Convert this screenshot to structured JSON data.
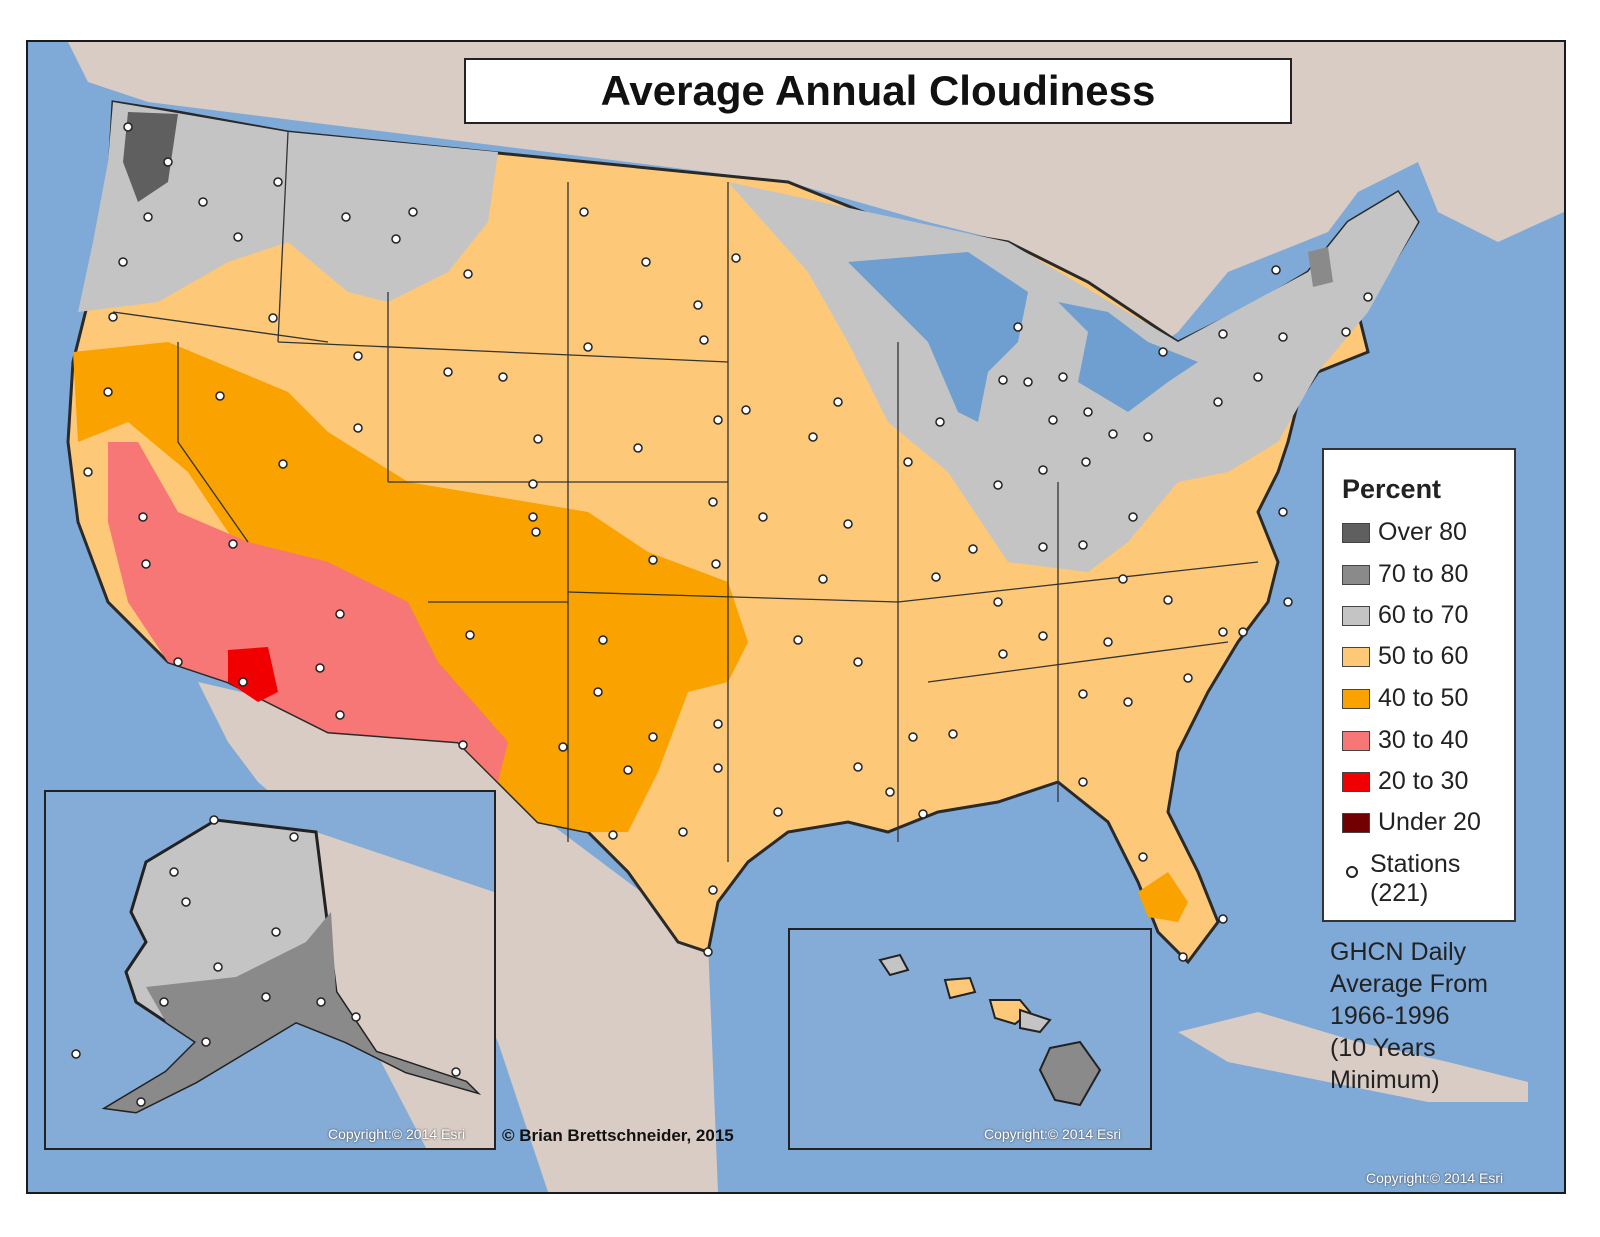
{
  "title": "Average Annual Cloudiness",
  "legend": {
    "title": "Percent",
    "items": [
      {
        "label": "Over 80",
        "color": "#5f5f5f"
      },
      {
        "label": "70 to 80",
        "color": "#8a8a8a"
      },
      {
        "label": "60 to 70",
        "color": "#c4c4c4"
      },
      {
        "label": "50 to 60",
        "color": "#fdc878"
      },
      {
        "label": "40 to 50",
        "color": "#f9a200"
      },
      {
        "label": "30 to 40",
        "color": "#f77676"
      },
      {
        "label": "20 to 30",
        "color": "#f00000"
      },
      {
        "label": "Under 20",
        "color": "#720000"
      }
    ],
    "stations_line1": "Stations",
    "stations_line2": "(221)"
  },
  "source_note": [
    "GHCN Daily",
    "Average From",
    "1966-1996",
    "(10 Years",
    "Minimum)"
  ],
  "credit": "© Brian Brettschneider, 2015",
  "copyright_alaska": "Copyright:© 2014 Esri",
  "copyright_hawaii": "Copyright:© 2014 Esri",
  "copyright_main": "Copyright:© 2014 Esri",
  "colors": {
    "ocean": "#7fa9d6",
    "land_background": "#d9ccc5",
    "great_lakes": "#6e9fd0",
    "outline": "#2a2a2a"
  }
}
